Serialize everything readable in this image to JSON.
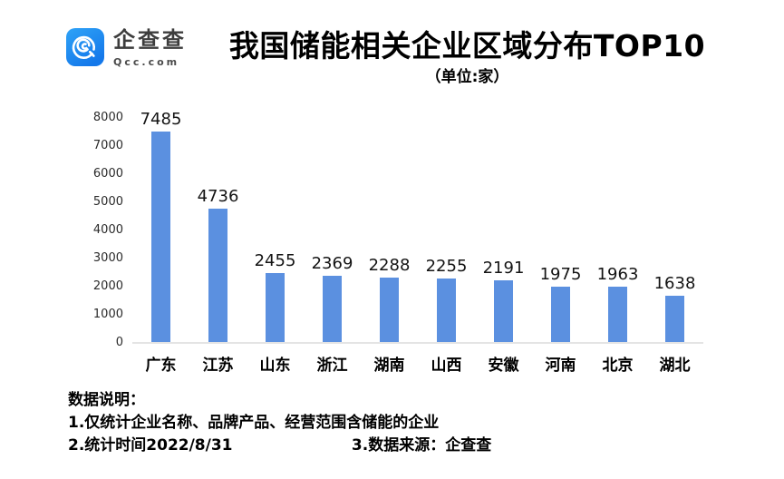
{
  "brand": {
    "name": "企查查",
    "domain": "Qcc.com",
    "logo_color_top": "#2fa3f7",
    "logo_color_bottom": "#1478ea"
  },
  "header": {
    "title": "我国储能相关企业区域分布TOP10",
    "subtitle": "（单位:家）"
  },
  "chart_data": {
    "type": "bar",
    "categories": [
      "广东",
      "江苏",
      "山东",
      "浙江",
      "湖南",
      "山西",
      "安徽",
      "河南",
      "北京",
      "湖北"
    ],
    "values": [
      7485,
      4736,
      2455,
      2369,
      2288,
      2255,
      2191,
      1975,
      1963,
      1638
    ],
    "title": "我国储能相关企业区域分布TOP10",
    "unit_label": "（单位:家）",
    "xlabel": "",
    "ylabel": "",
    "ylim": [
      0,
      8000
    ],
    "yticks": [
      0,
      1000,
      2000,
      3000,
      4000,
      5000,
      6000,
      7000,
      8000
    ],
    "bar_color": "#5b90e0",
    "baseline_color": "#e4e4e4",
    "grid": false,
    "legend": null,
    "value_labels": true
  },
  "footer": {
    "heading": "数据说明：",
    "line1": "1.仅统计企业名称、品牌产品、经营范围含储能的企业",
    "line2_left": "2.统计时间2022/8/31",
    "line2_right": "3.数据来源：企查查"
  }
}
